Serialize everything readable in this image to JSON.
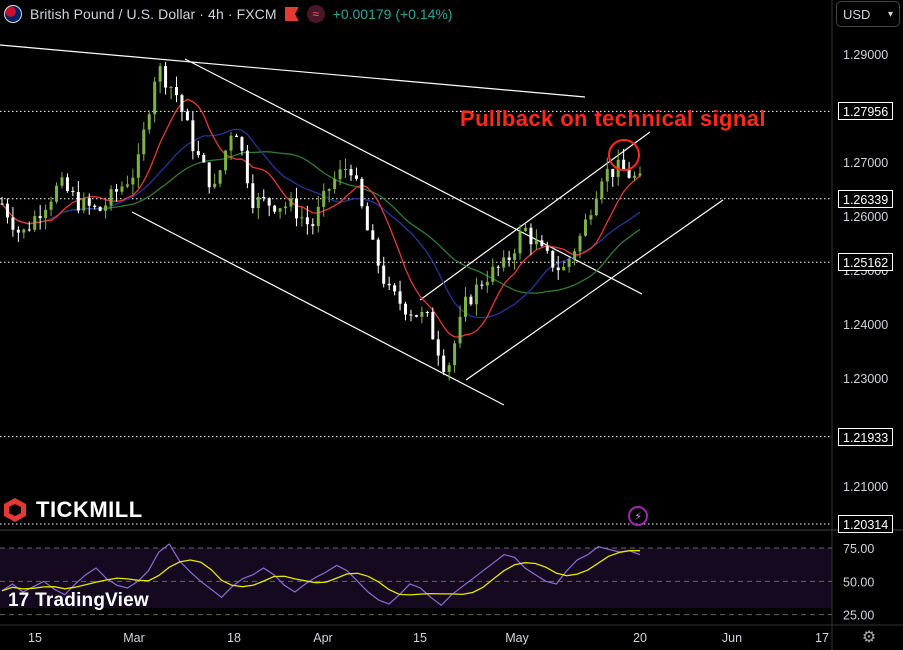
{
  "header": {
    "symbol_title": "British Pound / U.S. Dollar · 4h · FXCM",
    "change": "+0.00179 (+0.14%)",
    "wave_icon": "≈"
  },
  "currency_button": {
    "label": "USD",
    "chevron": "▾"
  },
  "annotation": "Pullback on technical signal",
  "brand": {
    "tickmill": "TICKMILL",
    "tradingview": "TradingView",
    "tv_mark": "17"
  },
  "icons": {
    "flash": "⚡",
    "settings": "⚙"
  },
  "colors": {
    "background": "#000000",
    "candle_up": "#7cb342",
    "candle_down": "#ffffff",
    "ma_fast": "#e53935",
    "ma_slow": "#283593",
    "ma_long": "#2e7d32",
    "annotation": "#ff2a1a",
    "oscillator": "#8e6bd6",
    "signal": "#e6e600"
  },
  "chart_data": [
    {
      "type": "line",
      "title": "British Pound / U.S. Dollar · 4h · FXCM",
      "x_tick_labels": [
        "15",
        "Mar",
        "18",
        "Apr",
        "15",
        "May",
        "20",
        "Jun",
        "17"
      ],
      "y_tick_labels": [
        "1.29000",
        "1.27000",
        "1.26000",
        "1.25000",
        "1.24000",
        "1.23000",
        "1.21000"
      ],
      "price_labels": [
        "1.27956",
        "1.26339",
        "1.25162",
        "1.21933",
        "1.20314"
      ],
      "ylim": [
        1.2,
        1.295
      ],
      "series": [
        {
          "x": [
            "Feb 13",
            "Feb 16",
            "Feb 19",
            "Feb 22",
            "Feb 25",
            "Feb 28",
            "Mar 3",
            "Mar 6",
            "Mar 8",
            "Mar 11",
            "Mar 14",
            "Mar 17",
            "Mar 20",
            "Mar 23",
            "Mar 26",
            "Mar 29",
            "Apr 1",
            "Apr 4",
            "Apr 7",
            "Apr 10",
            "Apr 13",
            "Apr 16",
            "Apr 19",
            "Apr 22",
            "Apr 25",
            "Apr 28",
            "May 1",
            "May 4",
            "May 7",
            "May 10",
            "May 13",
            "May 16",
            "May 18",
            "May 20"
          ],
          "values": [
            1.2625,
            1.2565,
            1.2615,
            1.266,
            1.2625,
            1.261,
            1.265,
            1.269,
            1.288,
            1.283,
            1.272,
            1.265,
            1.278,
            1.263,
            1.2625,
            1.262,
            1.258,
            1.266,
            1.27,
            1.256,
            1.246,
            1.243,
            1.241,
            1.2315,
            1.244,
            1.249,
            1.251,
            1.258,
            1.253,
            1.25,
            1.257,
            1.268,
            1.269,
            1.2665
          ]
        }
      ]
    },
    {
      "type": "line",
      "y_tick_labels": [
        "75.00",
        "50.00",
        "25.00"
      ],
      "ylim": [
        20,
        85
      ],
      "series": [
        {
          "values": [
            43,
            48,
            42,
            46,
            50,
            44,
            40,
            48,
            55,
            60,
            52,
            47,
            45,
            50,
            58,
            72,
            78,
            65,
            57,
            50,
            44,
            38,
            46,
            52,
            55,
            60,
            55,
            47,
            42,
            48,
            53,
            57,
            62,
            58,
            50,
            42,
            36,
            33,
            40,
            48,
            45,
            38,
            32,
            40,
            46,
            52,
            58,
            64,
            70,
            68,
            60,
            55,
            50,
            48,
            58,
            66,
            70,
            76,
            74,
            72,
            73,
            70
          ]
        }
      ]
    }
  ]
}
